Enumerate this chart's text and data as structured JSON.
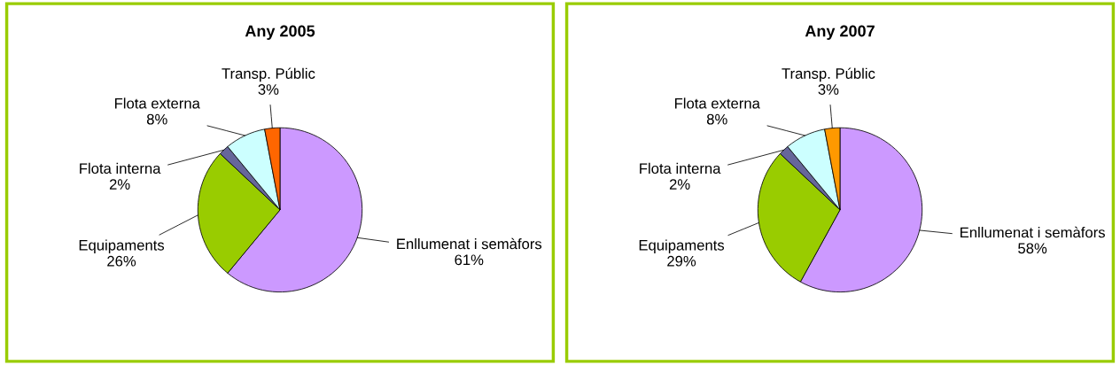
{
  "chart_data": [
    {
      "type": "pie",
      "title": "Any 2005",
      "categories": [
        "Enllumenat i semàfors",
        "Equipaments",
        "Flota interna",
        "Flota externa",
        "Transp. Públic"
      ],
      "values": [
        61,
        26,
        2,
        8,
        3
      ],
      "value_labels": [
        "61%",
        "26%",
        "2%",
        "8%",
        "3%"
      ],
      "colors": [
        "#cc99ff",
        "#99cc00",
        "#666699",
        "#ccffff",
        "#ff6600"
      ]
    },
    {
      "type": "pie",
      "title": "Any 2007",
      "categories": [
        "Enllumenat i semàfors",
        "Equipaments",
        "Flota interna",
        "Flota externa",
        "Transp. Públic"
      ],
      "values": [
        58,
        29,
        2,
        8,
        3
      ],
      "value_labels": [
        "58%",
        "29%",
        "2%",
        "8%",
        "3%"
      ],
      "colors": [
        "#cc99ff",
        "#99cc00",
        "#666699",
        "#ccffff",
        "#ff9900"
      ]
    }
  ]
}
